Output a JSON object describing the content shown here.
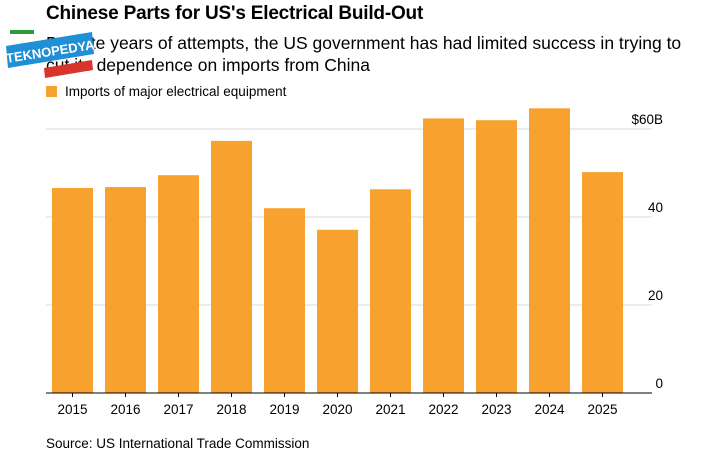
{
  "header": {
    "title": "Chinese Parts for US's Electrical Build-Out",
    "subtitle": "Despite years of attempts, the US government has had limited success in trying to cut its dependence on imports from China"
  },
  "watermark": {
    "text": "TEKNOPEDYA"
  },
  "legend": {
    "label": "Imports of major electrical equipment"
  },
  "footer": {
    "source": "Source: US International Trade Commission"
  },
  "colors": {
    "bar": "#f7a12e",
    "grid": "#d9d9d9",
    "axis": "#000000"
  },
  "chart_data": {
    "type": "bar",
    "categories": [
      "2015",
      "2016",
      "2017",
      "2018",
      "2019",
      "2020",
      "2021",
      "2022",
      "2023",
      "2024",
      "2025"
    ],
    "series": [
      {
        "name": "Imports of major electrical equipment",
        "values": [
          46.6,
          46.8,
          49.5,
          57.3,
          42.0,
          37.1,
          46.3,
          62.4,
          62.0,
          64.7,
          50.2
        ]
      }
    ],
    "ylim": [
      0,
      60
    ],
    "yticks": [
      0,
      20,
      40,
      60
    ],
    "ytick_labels": [
      "0",
      "20",
      "40",
      "$60B"
    ],
    "grid": true,
    "legend_position": "top-left",
    "title": "Chinese Parts for US's Electrical Build-Out"
  }
}
